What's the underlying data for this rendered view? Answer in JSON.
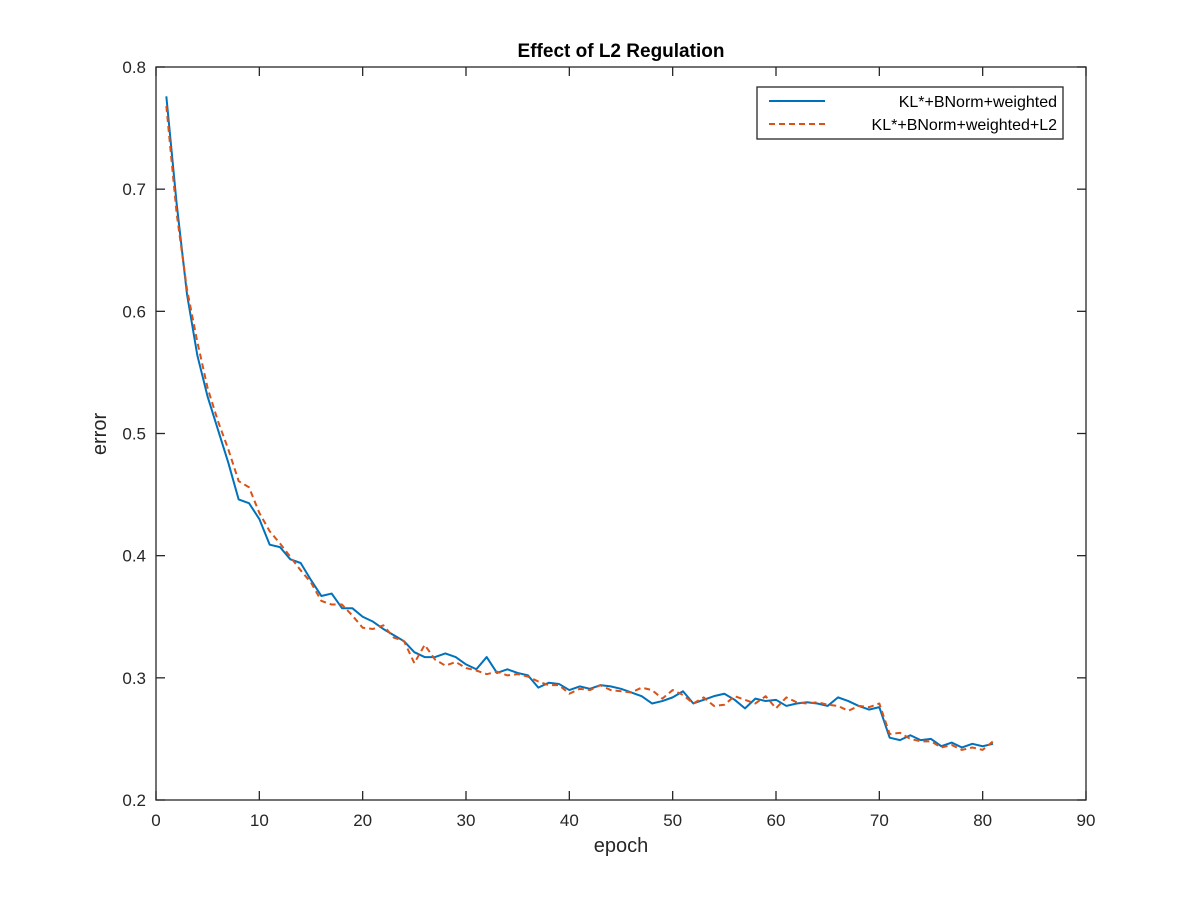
{
  "chart_data": {
    "type": "line",
    "title": "Effect of L2 Regulation",
    "xlabel": "epoch",
    "ylabel": "error",
    "xlim": [
      0,
      90
    ],
    "ylim": [
      0.2,
      0.8
    ],
    "xticks": [
      0,
      10,
      20,
      30,
      40,
      50,
      60,
      70,
      80,
      90
    ],
    "yticks": [
      0.2,
      0.3,
      0.4,
      0.5,
      0.6,
      0.7,
      0.8
    ],
    "xtick_labels": [
      "0",
      "10",
      "20",
      "30",
      "40",
      "50",
      "60",
      "70",
      "80",
      "90"
    ],
    "ytick_labels": [
      "0.2",
      "0.3",
      "0.4",
      "0.5",
      "0.6",
      "0.7",
      "0.8"
    ],
    "grid": false,
    "legend_position": "top-right",
    "x": [
      1,
      2,
      3,
      4,
      5,
      6,
      7,
      8,
      9,
      10,
      11,
      12,
      13,
      14,
      15,
      16,
      17,
      18,
      19,
      20,
      21,
      22,
      23,
      24,
      25,
      26,
      27,
      28,
      29,
      30,
      31,
      32,
      33,
      34,
      35,
      36,
      37,
      38,
      39,
      40,
      41,
      42,
      43,
      44,
      45,
      46,
      47,
      48,
      49,
      50,
      51,
      52,
      53,
      54,
      55,
      56,
      57,
      58,
      59,
      60,
      61,
      62,
      63,
      64,
      65,
      66,
      67,
      68,
      69,
      70,
      71,
      72,
      73,
      74,
      75,
      76,
      77,
      78,
      79,
      80,
      81
    ],
    "series": [
      {
        "name": "KL*+BNorm+weighted",
        "color": "#0072bd",
        "style": "solid",
        "values": [
          0.776,
          0.688,
          0.614,
          0.564,
          0.53,
          0.503,
          0.476,
          0.446,
          0.443,
          0.43,
          0.409,
          0.407,
          0.397,
          0.394,
          0.38,
          0.367,
          0.369,
          0.357,
          0.357,
          0.35,
          0.346,
          0.34,
          0.335,
          0.33,
          0.321,
          0.317,
          0.317,
          0.32,
          0.317,
          0.311,
          0.307,
          0.317,
          0.304,
          0.307,
          0.304,
          0.302,
          0.292,
          0.296,
          0.295,
          0.29,
          0.293,
          0.291,
          0.294,
          0.293,
          0.291,
          0.288,
          0.285,
          0.279,
          0.281,
          0.284,
          0.289,
          0.279,
          0.282,
          0.285,
          0.287,
          0.282,
          0.275,
          0.283,
          0.281,
          0.282,
          0.277,
          0.279,
          0.28,
          0.279,
          0.277,
          0.284,
          0.281,
          0.277,
          0.274,
          0.276,
          0.251,
          0.249,
          0.253,
          0.249,
          0.25,
          0.244,
          0.247,
          0.243,
          0.246,
          0.244,
          0.246
        ]
      },
      {
        "name": "KL*+BNorm+weighted+L2",
        "color": "#d95319",
        "style": "dashed",
        "values": [
          0.768,
          0.68,
          0.618,
          0.575,
          0.537,
          0.51,
          0.487,
          0.461,
          0.456,
          0.435,
          0.42,
          0.41,
          0.399,
          0.388,
          0.378,
          0.363,
          0.36,
          0.36,
          0.351,
          0.341,
          0.34,
          0.343,
          0.333,
          0.33,
          0.312,
          0.327,
          0.315,
          0.31,
          0.313,
          0.308,
          0.306,
          0.303,
          0.305,
          0.302,
          0.303,
          0.301,
          0.297,
          0.294,
          0.294,
          0.287,
          0.291,
          0.29,
          0.294,
          0.29,
          0.289,
          0.288,
          0.292,
          0.29,
          0.283,
          0.29,
          0.286,
          0.279,
          0.284,
          0.277,
          0.278,
          0.285,
          0.282,
          0.279,
          0.285,
          0.275,
          0.284,
          0.28,
          0.279,
          0.28,
          0.278,
          0.277,
          0.273,
          0.277,
          0.276,
          0.279,
          0.254,
          0.255,
          0.25,
          0.248,
          0.248,
          0.243,
          0.245,
          0.241,
          0.243,
          0.241,
          0.248
        ]
      }
    ]
  }
}
